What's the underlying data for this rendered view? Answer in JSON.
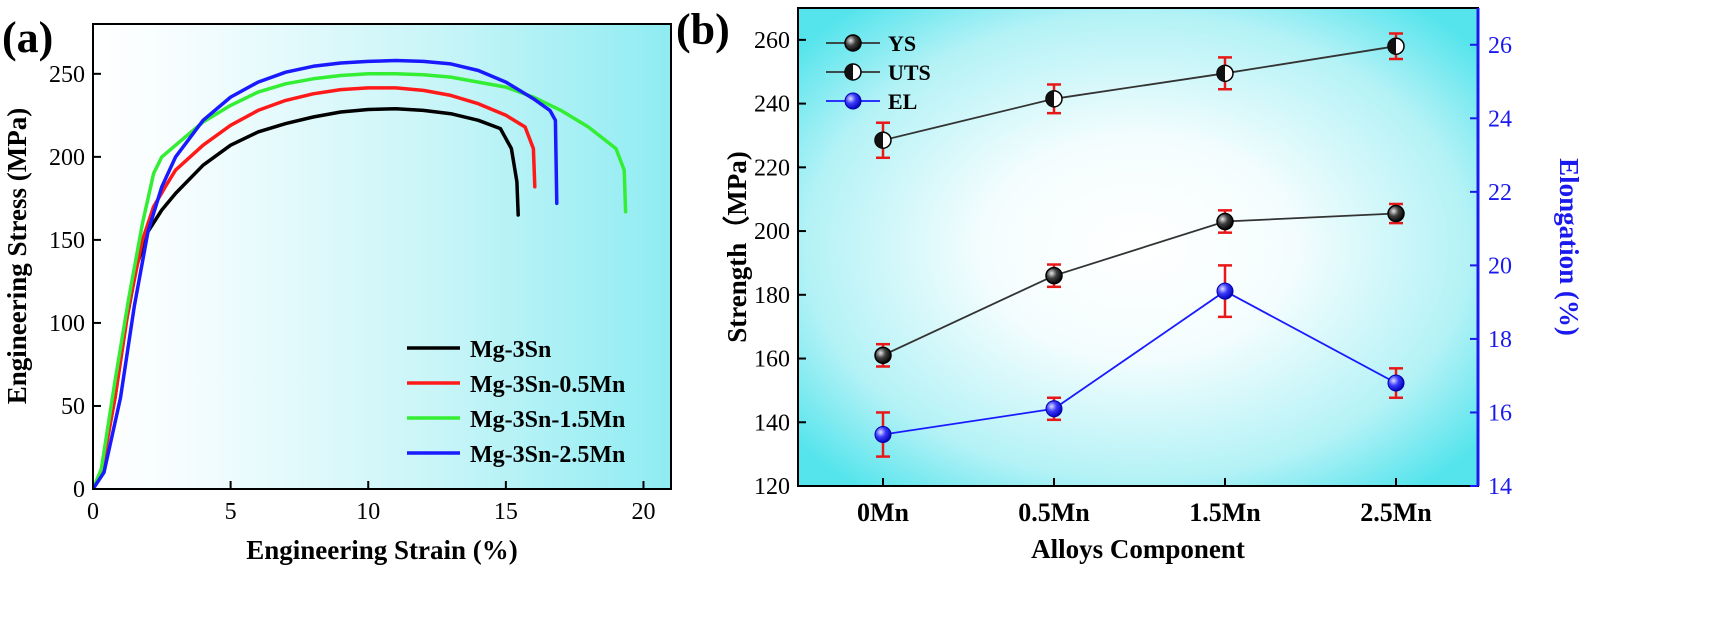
{
  "colors": {
    "black": "#000000",
    "red": "#ff1a1a",
    "green": "#33ee33",
    "blue": "#1a1aff",
    "errorbar": "#e81818",
    "cyan": "#3ee6ee",
    "el_axis": "#1a1aee"
  },
  "chart_data": [
    {
      "panel_label": "(a)",
      "type": "line",
      "xlabel": "Engineering Strain (%)",
      "ylabel": "Engineering Stress (MPa)",
      "xlim": [
        0,
        21
      ],
      "ylim": [
        0,
        280
      ],
      "xticks": [
        0,
        5,
        10,
        15,
        20
      ],
      "yticks": [
        0,
        50,
        100,
        150,
        200,
        250
      ],
      "grid": false,
      "legend_position": "bottom-right",
      "series": [
        {
          "name": "Mg-3Sn",
          "color": "black",
          "points": [
            [
              0,
              0
            ],
            [
              0.3,
              10
            ],
            [
              0.8,
              55
            ],
            [
              1.2,
              100
            ],
            [
              1.6,
              135
            ],
            [
              2.0,
              155
            ],
            [
              2.5,
              168
            ],
            [
              3,
              178
            ],
            [
              4,
              195
            ],
            [
              5,
              207
            ],
            [
              6,
              215
            ],
            [
              7,
              220
            ],
            [
              8,
              224
            ],
            [
              9,
              227
            ],
            [
              10,
              228.5
            ],
            [
              11,
              229
            ],
            [
              12,
              228
            ],
            [
              13,
              226
            ],
            [
              14,
              222
            ],
            [
              14.8,
              217
            ],
            [
              15.2,
              205
            ],
            [
              15.4,
              185
            ],
            [
              15.45,
              165
            ]
          ]
        },
        {
          "name": "Mg-3Sn-0.5Mn",
          "color": "red",
          "points": [
            [
              0,
              0
            ],
            [
              0.3,
              10
            ],
            [
              0.8,
              55
            ],
            [
              1.3,
              110
            ],
            [
              1.8,
              150
            ],
            [
              2.2,
              170
            ],
            [
              2.7,
              184
            ],
            [
              3,
              192
            ],
            [
              4,
              207
            ],
            [
              5,
              219
            ],
            [
              6,
              228
            ],
            [
              7,
              234
            ],
            [
              8,
              238
            ],
            [
              9,
              240.5
            ],
            [
              10,
              241.5
            ],
            [
              11,
              241.5
            ],
            [
              12,
              240
            ],
            [
              13,
              237
            ],
            [
              14,
              232
            ],
            [
              15,
              225
            ],
            [
              15.7,
              218
            ],
            [
              16,
              205
            ],
            [
              16.05,
              182
            ]
          ]
        },
        {
          "name": "Mg-3Sn-1.5Mn",
          "color": "green",
          "points": [
            [
              0,
              0
            ],
            [
              0.3,
              12
            ],
            [
              0.8,
              65
            ],
            [
              1.3,
              115
            ],
            [
              1.8,
              160
            ],
            [
              2.2,
              190
            ],
            [
              2.5,
              200
            ],
            [
              3,
              207
            ],
            [
              4,
              221
            ],
            [
              5,
              231
            ],
            [
              6,
              239
            ],
            [
              7,
              244
            ],
            [
              8,
              247
            ],
            [
              9,
              249
            ],
            [
              10,
              250
            ],
            [
              11,
              250
            ],
            [
              12,
              249.5
            ],
            [
              13,
              248
            ],
            [
              14,
              245
            ],
            [
              15,
              242
            ],
            [
              16,
              236
            ],
            [
              17,
              228
            ],
            [
              18,
              218
            ],
            [
              19,
              205
            ],
            [
              19.3,
              192
            ],
            [
              19.35,
              167
            ]
          ]
        },
        {
          "name": "Mg-3Sn-2.5Mn",
          "color": "blue",
          "points": [
            [
              0,
              0
            ],
            [
              0.4,
              10
            ],
            [
              1,
              55
            ],
            [
              1.5,
              110
            ],
            [
              2,
              155
            ],
            [
              2.5,
              182
            ],
            [
              3,
              200
            ],
            [
              4,
              222
            ],
            [
              5,
              236
            ],
            [
              6,
              245
            ],
            [
              7,
              251
            ],
            [
              8,
              254.5
            ],
            [
              9,
              256.5
            ],
            [
              10,
              257.5
            ],
            [
              11,
              258
            ],
            [
              12,
              257.5
            ],
            [
              13,
              256
            ],
            [
              14,
              252
            ],
            [
              15,
              245
            ],
            [
              16,
              235
            ],
            [
              16.6,
              228
            ],
            [
              16.8,
              222
            ],
            [
              16.85,
              172
            ]
          ]
        }
      ]
    },
    {
      "panel_label": "(b)",
      "type": "line",
      "xlabel": "Alloys Component",
      "ylabel": "Strength（MPa)",
      "y2label": "Elongation (%)",
      "categories": [
        "0Mn",
        "0.5Mn",
        "1.5Mn",
        "2.5Mn"
      ],
      "ylim": [
        120,
        270
      ],
      "y2lim": [
        14,
        27
      ],
      "yticks": [
        120,
        140,
        160,
        180,
        200,
        220,
        240,
        260
      ],
      "y2ticks": [
        14,
        16,
        18,
        20,
        22,
        24,
        26
      ],
      "grid": false,
      "legend_position": "top-left",
      "series": [
        {
          "name": "YS",
          "axis": "left",
          "marker": "half-filled",
          "color": "black",
          "values": [
            161,
            186,
            203,
            205.5
          ],
          "errors": [
            3.5,
            3.5,
            3.5,
            3
          ]
        },
        {
          "name": "UTS",
          "axis": "left",
          "marker": "half-open",
          "color": "black",
          "values": [
            228.5,
            241.5,
            249.5,
            258
          ],
          "errors": [
            5.5,
            4.5,
            5,
            4
          ]
        },
        {
          "name": "EL",
          "axis": "right",
          "marker": "filled",
          "color": "blue",
          "values": [
            15.4,
            16.1,
            19.3,
            16.8
          ],
          "errors": [
            0.6,
            0.3,
            0.7,
            0.4
          ]
        }
      ]
    }
  ]
}
